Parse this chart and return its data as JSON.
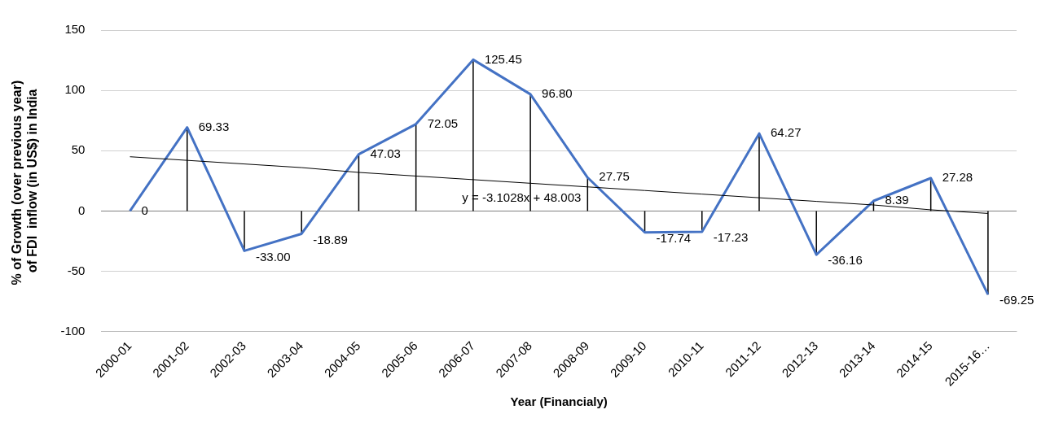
{
  "chart_data": {
    "type": "line",
    "ylabel": "% of Growth (over previous year)  of FDI  inflow (in US$) in India",
    "xlabel": "Year (Financialy)",
    "categories": [
      "2000-01",
      "2001-02",
      "2002-03",
      "2003-04",
      "2004-05",
      "2005-06",
      "2006-07",
      "2007-08",
      "2008-09",
      "2009-10",
      "2010-11",
      "2011-12",
      "2012-13",
      "2013-14",
      "2014-15",
      "2015-16…"
    ],
    "series": [
      {
        "type": "line",
        "color": "#4472c4",
        "values": [
          0,
          69.33,
          -33.0,
          -18.89,
          47.03,
          72.05,
          125.45,
          96.8,
          27.75,
          -17.74,
          -17.23,
          64.27,
          -36.16,
          8.39,
          27.28,
          -69.25
        ],
        "value_labels": [
          "0",
          "69.33",
          "-33.00",
          "-18.89",
          "47.03",
          "72.05",
          "125.45",
          "96.80",
          "27.75",
          "-17.74",
          "-17.23",
          "64.27",
          "-36.16",
          "8.39",
          "27.28",
          "-69.25"
        ]
      },
      {
        "type": "line",
        "color": "#000000",
        "values": [
          45,
          42,
          39,
          36,
          32,
          29,
          26,
          23,
          20,
          17,
          14,
          11,
          8,
          5,
          1,
          -2
        ]
      }
    ],
    "annotations": [
      {
        "text": "y = -3.1028x + 48.003",
        "x": "2008-09",
        "y": 20
      }
    ],
    "ylim": [
      -100,
      150
    ],
    "yticks": [
      -100,
      -50,
      0,
      50,
      100,
      150
    ],
    "grid": "y",
    "legend": false,
    "marker": "none",
    "line_style": "solid"
  }
}
